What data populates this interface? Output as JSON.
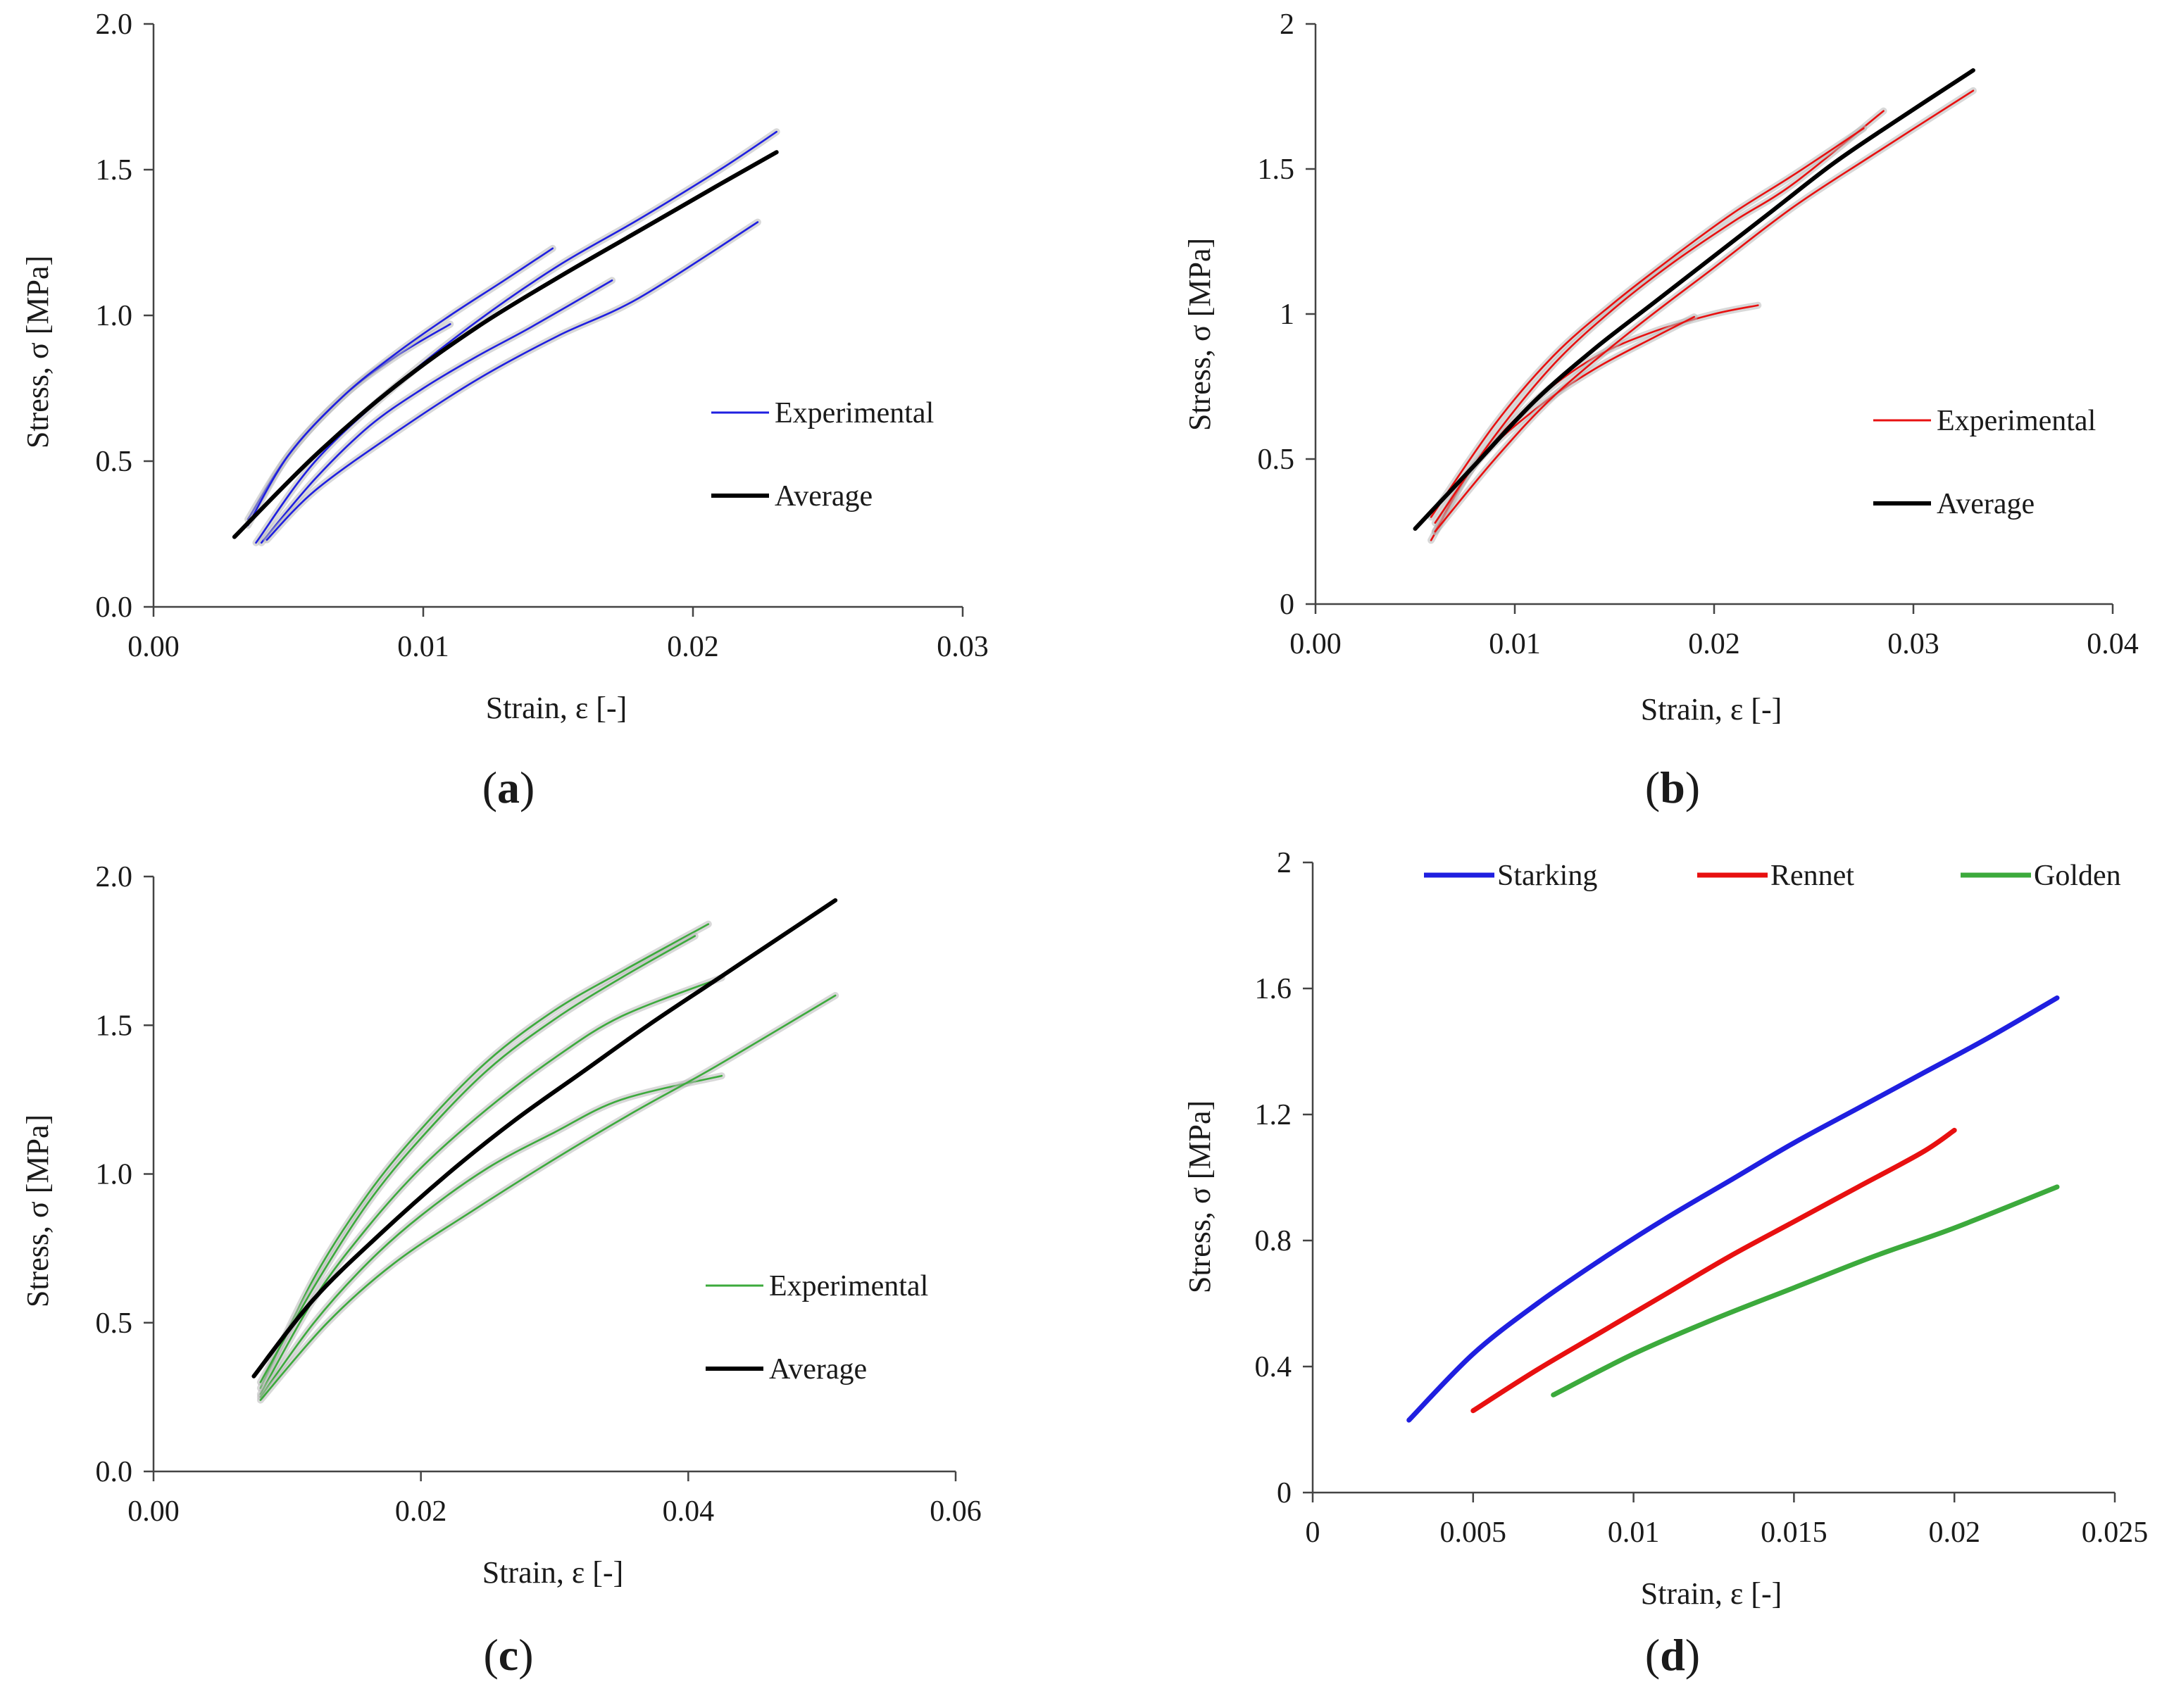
{
  "figure": {
    "panels": [
      "a",
      "b",
      "c",
      "d"
    ]
  },
  "chart_data": [
    {
      "id": "a",
      "type": "line",
      "caption": "a",
      "xlabel": "Strain, ε [-]",
      "ylabel": "Stress, σ [MPa]",
      "xlim": [
        0,
        0.03
      ],
      "ylim": [
        0,
        2
      ],
      "xticks": [
        0,
        0.01,
        0.02,
        0.03
      ],
      "xtick_labels": [
        "0.00",
        "0.01",
        "0.02",
        "0.03"
      ],
      "yticks": [
        0,
        0.5,
        1.0,
        1.5,
        2.0
      ],
      "ytick_labels": [
        "0.0",
        "0.5",
        "1.0",
        "1.5",
        "2.0"
      ],
      "experimental_color": "#1f1fe0",
      "legend": [
        {
          "label": "Experimental",
          "color": "#1f1fe0"
        },
        {
          "label": "Average",
          "color": "#000000"
        }
      ],
      "series": [
        {
          "name": "Experimental",
          "x": [
            0.0035,
            0.005,
            0.007,
            0.009,
            0.011
          ],
          "y": [
            0.3,
            0.52,
            0.72,
            0.86,
            0.97
          ]
        },
        {
          "name": "Experimental",
          "x": [
            0.0035,
            0.005,
            0.007,
            0.009,
            0.011,
            0.013,
            0.0148
          ],
          "y": [
            0.28,
            0.52,
            0.72,
            0.87,
            1.0,
            1.12,
            1.23
          ]
        },
        {
          "name": "Experimental",
          "x": [
            0.0038,
            0.006,
            0.009,
            0.012,
            0.015,
            0.018,
            0.021,
            0.0231
          ],
          "y": [
            0.22,
            0.5,
            0.76,
            0.98,
            1.17,
            1.33,
            1.5,
            1.63
          ]
        },
        {
          "name": "Experimental",
          "x": [
            0.004,
            0.006,
            0.008,
            0.01,
            0.012,
            0.014,
            0.017
          ],
          "y": [
            0.22,
            0.44,
            0.62,
            0.75,
            0.86,
            0.96,
            1.12
          ]
        },
        {
          "name": "Experimental",
          "x": [
            0.0042,
            0.006,
            0.009,
            0.012,
            0.015,
            0.018,
            0.0224
          ],
          "y": [
            0.23,
            0.4,
            0.6,
            0.78,
            0.93,
            1.06,
            1.32
          ]
        },
        {
          "name": "Average",
          "x": [
            0.003,
            0.006,
            0.009,
            0.012,
            0.015,
            0.018,
            0.021,
            0.0231
          ],
          "y": [
            0.24,
            0.52,
            0.76,
            0.96,
            1.13,
            1.29,
            1.45,
            1.56
          ]
        }
      ]
    },
    {
      "id": "b",
      "type": "line",
      "caption": "b",
      "xlabel": "Strain, ε [-]",
      "ylabel": "Stress, σ [MPa]",
      "xlim": [
        0,
        0.04
      ],
      "ylim": [
        0,
        2
      ],
      "xticks": [
        0,
        0.01,
        0.02,
        0.03,
        0.04
      ],
      "xtick_labels": [
        "0.00",
        "0.01",
        "0.02",
        "0.03",
        "0.04"
      ],
      "yticks": [
        0,
        0.5,
        1,
        1.5,
        2
      ],
      "ytick_labels": [
        "0",
        "0.5",
        "1",
        "1.5",
        "2"
      ],
      "experimental_color": "#e81010",
      "legend": [
        {
          "label": "Experimental",
          "color": "#e81010"
        },
        {
          "label": "Average",
          "color": "#000000"
        }
      ],
      "series": [
        {
          "name": "Experimental",
          "x": [
            0.0058,
            0.008,
            0.011,
            0.014,
            0.017,
            0.02,
            0.0222
          ],
          "y": [
            0.22,
            0.48,
            0.7,
            0.85,
            0.94,
            1.0,
            1.03
          ]
        },
        {
          "name": "Experimental",
          "x": [
            0.006,
            0.008,
            0.011,
            0.014,
            0.017,
            0.019
          ],
          "y": [
            0.25,
            0.48,
            0.67,
            0.81,
            0.92,
            0.99
          ]
        },
        {
          "name": "Experimental",
          "x": [
            0.006,
            0.009,
            0.012,
            0.015,
            0.018,
            0.021,
            0.024,
            0.0285
          ],
          "y": [
            0.28,
            0.58,
            0.83,
            1.02,
            1.18,
            1.32,
            1.45,
            1.7
          ]
        },
        {
          "name": "Experimental",
          "x": [
            0.0058,
            0.009,
            0.012,
            0.015,
            0.018,
            0.021,
            0.024,
            0.0275
          ],
          "y": [
            0.3,
            0.62,
            0.86,
            1.04,
            1.2,
            1.35,
            1.48,
            1.64
          ]
        },
        {
          "name": "Experimental",
          "x": [
            0.006,
            0.009,
            0.012,
            0.016,
            0.02,
            0.024,
            0.028,
            0.033
          ],
          "y": [
            0.25,
            0.5,
            0.72,
            0.95,
            1.16,
            1.37,
            1.55,
            1.77
          ]
        },
        {
          "name": "Average",
          "x": [
            0.005,
            0.008,
            0.011,
            0.014,
            0.017,
            0.02,
            0.023,
            0.026,
            0.029,
            0.033
          ],
          "y": [
            0.26,
            0.48,
            0.7,
            0.88,
            1.04,
            1.2,
            1.36,
            1.52,
            1.66,
            1.84
          ]
        }
      ]
    },
    {
      "id": "c",
      "type": "line",
      "caption": "c",
      "xlabel": "Strain, ε [-]",
      "ylabel": "Stress, σ [MPa]",
      "xlim": [
        0,
        0.06
      ],
      "ylim": [
        0,
        2
      ],
      "xticks": [
        0,
        0.02,
        0.04,
        0.06
      ],
      "xtick_labels": [
        "0.00",
        "0.02",
        "0.04",
        "0.06"
      ],
      "yticks": [
        0,
        0.5,
        1.0,
        1.5,
        2.0
      ],
      "ytick_labels": [
        "0.0",
        "0.5",
        "1.0",
        "1.5",
        "2.0"
      ],
      "experimental_color": "#3caa3c",
      "legend": [
        {
          "label": "Experimental",
          "color": "#3caa3c"
        },
        {
          "label": "Average",
          "color": "#000000"
        }
      ],
      "series": [
        {
          "name": "Experimental",
          "x": [
            0.008,
            0.012,
            0.016,
            0.02,
            0.025,
            0.03,
            0.035,
            0.0415
          ],
          "y": [
            0.28,
            0.65,
            0.93,
            1.15,
            1.38,
            1.55,
            1.68,
            1.84
          ]
        },
        {
          "name": "Experimental",
          "x": [
            0.008,
            0.012,
            0.016,
            0.02,
            0.025,
            0.03,
            0.035,
            0.0405
          ],
          "y": [
            0.3,
            0.62,
            0.9,
            1.12,
            1.35,
            1.52,
            1.66,
            1.8
          ]
        },
        {
          "name": "Experimental",
          "x": [
            0.008,
            0.012,
            0.016,
            0.02,
            0.025,
            0.03,
            0.035,
            0.0425
          ],
          "y": [
            0.26,
            0.58,
            0.82,
            1.02,
            1.22,
            1.39,
            1.53,
            1.66
          ]
        },
        {
          "name": "Experimental",
          "x": [
            0.008,
            0.012,
            0.016,
            0.02,
            0.025,
            0.03,
            0.035,
            0.0425
          ],
          "y": [
            0.25,
            0.5,
            0.7,
            0.86,
            1.02,
            1.14,
            1.25,
            1.33
          ]
        },
        {
          "name": "Experimental",
          "x": [
            0.008,
            0.013,
            0.018,
            0.024,
            0.03,
            0.036,
            0.042,
            0.051
          ],
          "y": [
            0.24,
            0.5,
            0.7,
            0.88,
            1.05,
            1.21,
            1.36,
            1.6
          ]
        },
        {
          "name": "Average",
          "x": [
            0.0075,
            0.012,
            0.017,
            0.022,
            0.027,
            0.032,
            0.037,
            0.042,
            0.047,
            0.051
          ],
          "y": [
            0.32,
            0.58,
            0.8,
            1.0,
            1.18,
            1.34,
            1.5,
            1.65,
            1.8,
            1.92
          ]
        }
      ]
    },
    {
      "id": "d",
      "type": "line",
      "caption": "d",
      "xlabel": "Strain, ε [-]",
      "ylabel": "Stress, σ [MPa]",
      "xlim": [
        0,
        0.025
      ],
      "ylim": [
        0,
        2
      ],
      "xticks": [
        0,
        0.005,
        0.01,
        0.015,
        0.02,
        0.025
      ],
      "xtick_labels": [
        "0",
        "0.005",
        "0.01",
        "0.015",
        "0.02",
        "0.025"
      ],
      "yticks": [
        0,
        0.4,
        0.8,
        1.2,
        1.6,
        2
      ],
      "ytick_labels": [
        "0",
        "0.4",
        "0.8",
        "1.2",
        "1.6",
        "2"
      ],
      "legend": [
        {
          "label": "Starking",
          "color": "#1f1fe0"
        },
        {
          "label": "Rennet",
          "color": "#e81010"
        },
        {
          "label": "Golden",
          "color": "#3caa3c"
        }
      ],
      "series": [
        {
          "name": "Starking",
          "color": "#1f1fe0",
          "x": [
            0.003,
            0.005,
            0.007,
            0.009,
            0.011,
            0.013,
            0.015,
            0.017,
            0.019,
            0.021,
            0.0232
          ],
          "y": [
            0.23,
            0.44,
            0.6,
            0.74,
            0.87,
            0.99,
            1.11,
            1.22,
            1.33,
            1.44,
            1.57
          ]
        },
        {
          "name": "Rennet",
          "color": "#e81010",
          "x": [
            0.005,
            0.007,
            0.009,
            0.011,
            0.013,
            0.015,
            0.017,
            0.019,
            0.02
          ],
          "y": [
            0.26,
            0.39,
            0.51,
            0.63,
            0.75,
            0.86,
            0.97,
            1.08,
            1.15
          ]
        },
        {
          "name": "Golden",
          "color": "#3caa3c",
          "x": [
            0.0075,
            0.01,
            0.0125,
            0.015,
            0.0175,
            0.02,
            0.0232
          ],
          "y": [
            0.31,
            0.44,
            0.55,
            0.65,
            0.75,
            0.84,
            0.97
          ]
        }
      ]
    }
  ]
}
